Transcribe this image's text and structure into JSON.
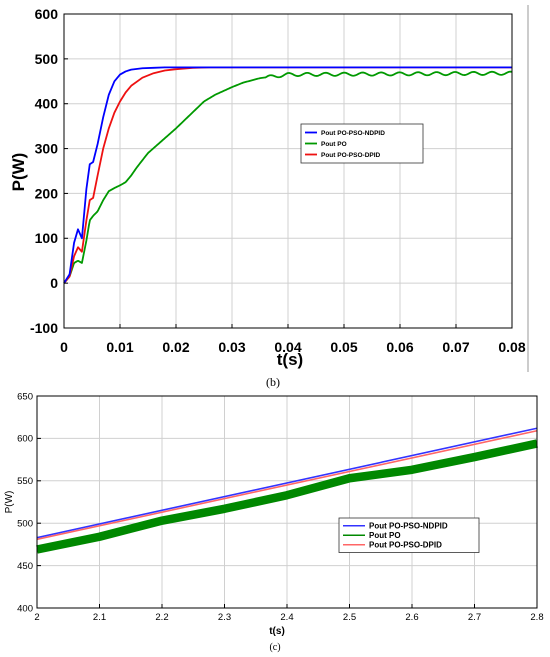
{
  "chart_data": [
    {
      "type": "line",
      "xlabel": "t(s)",
      "ylabel": "P(W)",
      "xlim": [
        0,
        0.08
      ],
      "ylim": [
        -100,
        600
      ],
      "xticks": [
        0,
        0.01,
        0.02,
        0.03,
        0.04,
        0.05,
        0.06,
        0.07,
        0.08
      ],
      "yticks": [
        -100,
        0,
        100,
        200,
        300,
        400,
        500,
        600
      ],
      "xtick_labels": [
        "0",
        "0.01",
        "0.02",
        "0.03",
        "0.04",
        "0.05",
        "0.06",
        "0.07",
        "0.08"
      ],
      "ytick_labels": [
        "-100",
        "0",
        "100",
        "200",
        "300",
        "400",
        "500",
        "600"
      ],
      "grid": true,
      "legend_position": "center-right",
      "caption": "(b)",
      "series": [
        {
          "name": "Pout PO-PSO-NDPID",
          "color": "#0000ff",
          "x": [
            0,
            0.001,
            0.0018,
            0.0025,
            0.0032,
            0.004,
            0.0046,
            0.0052,
            0.006,
            0.007,
            0.008,
            0.009,
            0.01,
            0.011,
            0.012,
            0.014,
            0.016,
            0.018,
            0.02,
            0.025,
            0.03,
            0.08
          ],
          "y": [
            0,
            20,
            90,
            120,
            100,
            210,
            265,
            270,
            310,
            370,
            420,
            450,
            465,
            472,
            476,
            479,
            480,
            481,
            481,
            481,
            481,
            481
          ]
        },
        {
          "name": "Pout PO",
          "color": "#009900",
          "oscillating_after_x": 0.036,
          "x": [
            0,
            0.001,
            0.0018,
            0.0025,
            0.0032,
            0.004,
            0.0046,
            0.0052,
            0.006,
            0.007,
            0.008,
            0.009,
            0.01,
            0.011,
            0.012,
            0.013,
            0.015,
            0.02,
            0.025,
            0.027,
            0.03,
            0.032,
            0.035,
            0.04,
            0.08
          ],
          "y": [
            0,
            15,
            45,
            50,
            45,
            95,
            140,
            150,
            160,
            185,
            205,
            212,
            218,
            225,
            240,
            258,
            290,
            345,
            405,
            420,
            437,
            447,
            457,
            465,
            468
          ]
        },
        {
          "name": "Pout PO-PSO-DPID",
          "color": "#ee1111",
          "x": [
            0,
            0.001,
            0.0018,
            0.0025,
            0.0032,
            0.004,
            0.0046,
            0.0052,
            0.006,
            0.007,
            0.008,
            0.009,
            0.01,
            0.011,
            0.012,
            0.014,
            0.016,
            0.018,
            0.02,
            0.023,
            0.026,
            0.03,
            0.08
          ],
          "y": [
            0,
            15,
            60,
            80,
            70,
            140,
            185,
            190,
            240,
            300,
            345,
            380,
            405,
            425,
            440,
            458,
            468,
            474,
            477,
            480,
            481,
            481,
            481
          ]
        }
      ]
    },
    {
      "type": "line",
      "xlabel": "t(s)",
      "ylabel": "P(W)",
      "xlim": [
        2,
        2.8
      ],
      "ylim": [
        400,
        650
      ],
      "xticks": [
        2,
        2.1,
        2.2,
        2.3,
        2.4,
        2.5,
        2.6,
        2.7,
        2.8
      ],
      "yticks": [
        400,
        450,
        500,
        550,
        600,
        650
      ],
      "xtick_labels": [
        "2",
        "2.1",
        "2.2",
        "2.3",
        "2.4",
        "2.5",
        "2.6",
        "2.7",
        "2.8"
      ],
      "ytick_labels": [
        "400",
        "450",
        "500",
        "550",
        "600",
        "650"
      ],
      "grid": true,
      "legend_position": "lower-right",
      "caption": "(c)",
      "series": [
        {
          "name": "Pout PO-PSO-NDPID",
          "color": "#3333ff",
          "x": [
            2.0,
            2.8
          ],
          "y": [
            483,
            612
          ]
        },
        {
          "name": "Pout PO",
          "color": "#008800",
          "band_width": 10,
          "x": [
            2.0,
            2.1,
            2.2,
            2.3,
            2.4,
            2.5,
            2.6,
            2.7,
            2.8
          ],
          "y": [
            469,
            484,
            503,
            517,
            533,
            553,
            563,
            578,
            594
          ]
        },
        {
          "name": "Pout PO-PSO-DPID",
          "color": "#ff6666",
          "x": [
            2.0,
            2.8
          ],
          "y": [
            481,
            609
          ]
        }
      ]
    }
  ]
}
